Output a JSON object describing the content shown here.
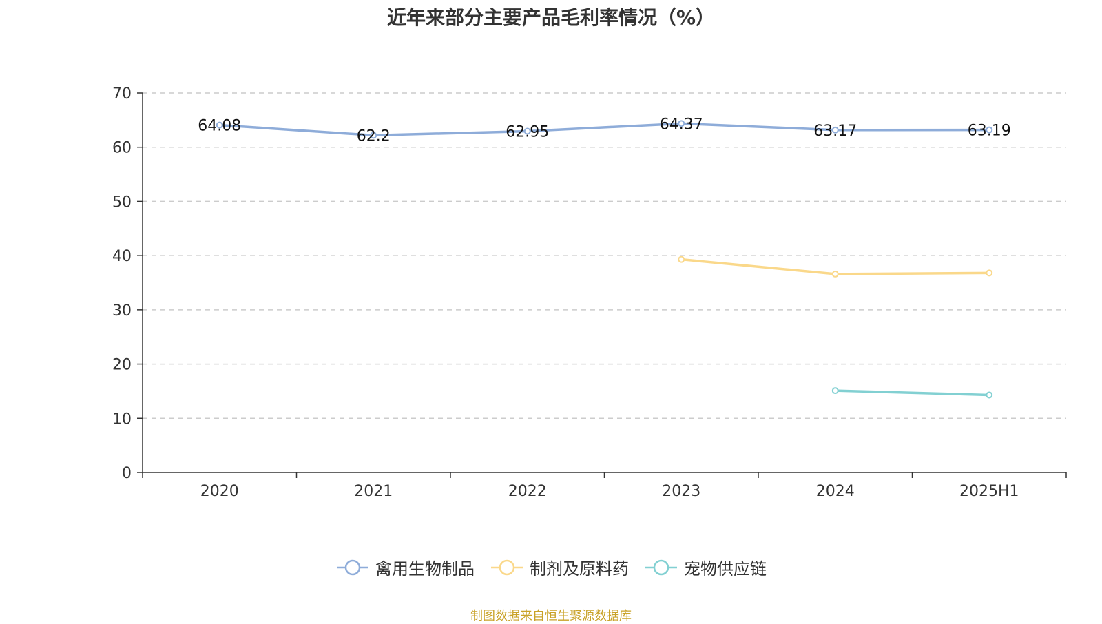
{
  "chart_data": {
    "type": "line",
    "title": "近年来部分主要产品毛利率情况（%）",
    "categories": [
      "2020",
      "2021",
      "2022",
      "2023",
      "2024",
      "2025H1"
    ],
    "ylim": [
      0,
      70
    ],
    "yticks": [
      0,
      10,
      20,
      30,
      40,
      50,
      60,
      70
    ],
    "grid": true,
    "legend_position": "bottom",
    "series": [
      {
        "name": "禽用生物制品",
        "color": "#8eacd9",
        "values": [
          64.08,
          62.2,
          62.95,
          64.37,
          63.17,
          63.19
        ],
        "show_labels": true
      },
      {
        "name": "制剂及原料药",
        "color": "#fad88a",
        "values": [
          null,
          null,
          null,
          39.3,
          36.6,
          36.8
        ],
        "show_labels": false
      },
      {
        "name": "宠物供应链",
        "color": "#82d0d2",
        "values": [
          null,
          null,
          null,
          null,
          15.1,
          14.3
        ],
        "show_labels": false
      }
    ]
  },
  "source": "制图数据来自恒生聚源数据库"
}
